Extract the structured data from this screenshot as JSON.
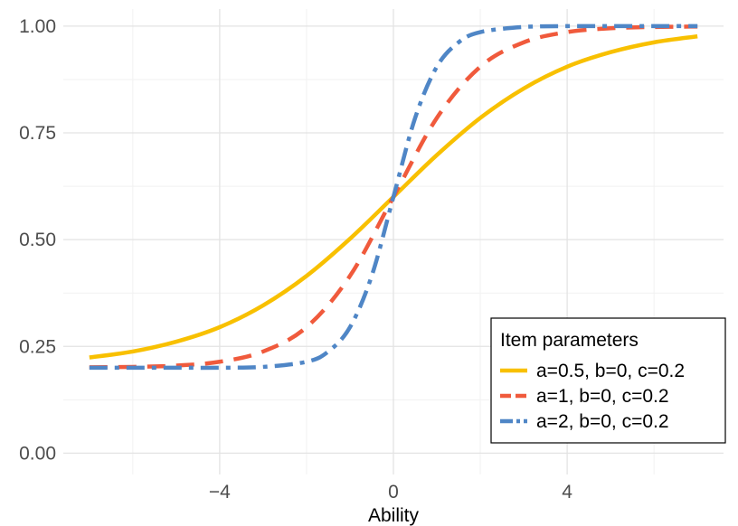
{
  "chart_data": {
    "type": "line",
    "title": "",
    "xlabel": "Ability",
    "ylabel": "",
    "xlim": [
      -7.0,
      7.0
    ],
    "ylim": [
      0.0,
      1.0
    ],
    "x_ticks": [
      -4,
      0,
      4
    ],
    "x_tick_labels": [
      "−4",
      "0",
      "4"
    ],
    "y_ticks": [
      0.0,
      0.25,
      0.5,
      0.75,
      1.0
    ],
    "y_tick_labels": [
      "0.00",
      "0.25",
      "0.50",
      "0.75",
      "1.00"
    ],
    "grid": true,
    "legend": {
      "title": "Item parameters",
      "position": "bottom-right"
    },
    "series": [
      {
        "name": "a=0.5, b=0, c=0.2",
        "color": "#F8C000",
        "dash": "solid",
        "x": [
          -7,
          -6,
          -5,
          -4,
          -3,
          -2,
          -1,
          0,
          1,
          2,
          3,
          4,
          5,
          6,
          7
        ],
        "y": [
          0.224,
          0.238,
          0.261,
          0.295,
          0.346,
          0.415,
          0.502,
          0.6,
          0.698,
          0.785,
          0.854,
          0.905,
          0.939,
          0.962,
          0.976
        ]
      },
      {
        "name": "a=1, b=0, c=0.2",
        "color": "#F05A3C",
        "dash": "dashed",
        "x": [
          -7,
          -6,
          -5,
          -4,
          -3,
          -2,
          -1,
          0,
          1,
          2,
          3,
          4,
          5,
          6,
          7
        ],
        "y": [
          0.201,
          0.202,
          0.205,
          0.214,
          0.238,
          0.295,
          0.415,
          0.6,
          0.785,
          0.905,
          0.962,
          0.986,
          0.995,
          0.998,
          0.999
        ]
      },
      {
        "name": "a=2, b=0, c=0.2",
        "color": "#4F86C6",
        "dash": "dotdash",
        "x": [
          -7,
          -6,
          -5,
          -4,
          -3,
          -2,
          -1.5,
          -1,
          -0.5,
          0,
          0.5,
          1,
          1.5,
          2,
          3,
          4,
          5,
          6,
          7
        ],
        "y": [
          0.2,
          0.2,
          0.2,
          0.2,
          0.202,
          0.214,
          0.238,
          0.295,
          0.415,
          0.6,
          0.785,
          0.905,
          0.962,
          0.986,
          0.998,
          1.0,
          1.0,
          1.0,
          1.0
        ]
      }
    ]
  }
}
